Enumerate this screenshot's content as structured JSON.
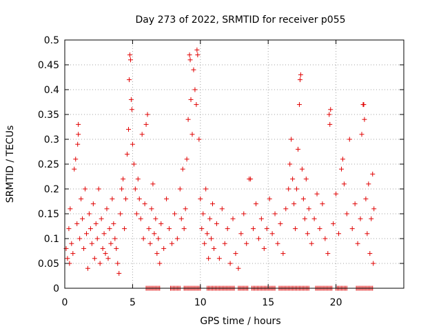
{
  "chart_data": {
    "type": "scatter",
    "title": "Day 273 of 2022, SRMTID for receiver p055",
    "xlabel": "GPS time / hours",
    "ylabel": "SRMTID / TECUs",
    "xlim": [
      0,
      25
    ],
    "ylim": [
      0,
      0.5
    ],
    "xticks": [
      "0",
      "5",
      "10",
      "15",
      "20"
    ],
    "yticks": [
      "0",
      "0.05",
      "0.1",
      "0.15",
      "0.2",
      "0.25",
      "0.3",
      "0.35",
      "0.4",
      "0.45",
      "0.5"
    ],
    "grid": true,
    "marker": "+",
    "color": "#e00000",
    "series": [
      {
        "name": "SRMTID",
        "points": [
          [
            0.1,
            0.08
          ],
          [
            0.2,
            0.06
          ],
          [
            0.3,
            0.12
          ],
          [
            0.35,
            0.05
          ],
          [
            0.4,
            0.16
          ],
          [
            0.5,
            0.09
          ],
          [
            0.6,
            0.07
          ],
          [
            0.7,
            0.24
          ],
          [
            0.8,
            0.26
          ],
          [
            0.9,
            0.13
          ],
          [
            0.95,
            0.29
          ],
          [
            1.0,
            0.31
          ],
          [
            1.0,
            0.33
          ],
          [
            1.1,
            0.1
          ],
          [
            1.2,
            0.18
          ],
          [
            1.3,
            0.14
          ],
          [
            1.4,
            0.08
          ],
          [
            1.5,
            0.2
          ],
          [
            1.6,
            0.11
          ],
          [
            1.7,
            0.04
          ],
          [
            1.8,
            0.15
          ],
          [
            1.9,
            0.12
          ],
          [
            2.0,
            0.09
          ],
          [
            2.1,
            0.17
          ],
          [
            2.2,
            0.06
          ],
          [
            2.3,
            0.13
          ],
          [
            2.4,
            0.1
          ],
          [
            2.5,
            0.2
          ],
          [
            2.6,
            0.05
          ],
          [
            2.7,
            0.14
          ],
          [
            2.8,
            0.08
          ],
          [
            2.9,
            0.11
          ],
          [
            3.0,
            0.07
          ],
          [
            3.1,
            0.16
          ],
          [
            3.2,
            0.06
          ],
          [
            3.3,
            0.12
          ],
          [
            3.4,
            0.09
          ],
          [
            3.5,
            0.18
          ],
          [
            3.6,
            0.13
          ],
          [
            3.7,
            0.1
          ],
          [
            3.8,
            0.08
          ],
          [
            3.9,
            0.05
          ],
          [
            4.0,
            0.03
          ],
          [
            4.1,
            0.15
          ],
          [
            4.2,
            0.2
          ],
          [
            4.3,
            0.22
          ],
          [
            4.4,
            0.12
          ],
          [
            4.5,
            0.18
          ],
          [
            4.6,
            0.27
          ],
          [
            4.7,
            0.32
          ],
          [
            4.75,
            0.42
          ],
          [
            4.8,
            0.47
          ],
          [
            4.85,
            0.46
          ],
          [
            4.9,
            0.38
          ],
          [
            4.95,
            0.36
          ],
          [
            5.0,
            0.29
          ],
          [
            5.1,
            0.25
          ],
          [
            5.2,
            0.2
          ],
          [
            5.3,
            0.15
          ],
          [
            5.4,
            0.22
          ],
          [
            5.5,
            0.18
          ],
          [
            5.6,
            0.14
          ],
          [
            5.7,
            0.31
          ],
          [
            5.8,
            0.1
          ],
          [
            5.9,
            0.17
          ],
          [
            6.0,
            0.33
          ],
          [
            6.1,
            0.35
          ],
          [
            6.2,
            0.12
          ],
          [
            6.3,
            0.09
          ],
          [
            6.4,
            0.16
          ],
          [
            6.5,
            0.21
          ],
          [
            6.6,
            0.11
          ],
          [
            6.7,
            0.14
          ],
          [
            6.8,
            0.07
          ],
          [
            6.9,
            0.1
          ],
          [
            7.0,
            0.05
          ],
          [
            7.1,
            0.13
          ],
          [
            7.3,
            0.08
          ],
          [
            7.5,
            0.18
          ],
          [
            7.7,
            0.12
          ],
          [
            7.9,
            0.09
          ],
          [
            8.1,
            0.15
          ],
          [
            8.3,
            0.1
          ],
          [
            8.5,
            0.2
          ],
          [
            8.6,
            0.14
          ],
          [
            8.7,
            0.24
          ],
          [
            8.8,
            0.12
          ],
          [
            8.9,
            0.16
          ],
          [
            9.0,
            0.26
          ],
          [
            9.1,
            0.34
          ],
          [
            9.2,
            0.47
          ],
          [
            9.25,
            0.46
          ],
          [
            9.3,
            0.38
          ],
          [
            9.4,
            0.31
          ],
          [
            9.5,
            0.44
          ],
          [
            9.6,
            0.4
          ],
          [
            9.7,
            0.37
          ],
          [
            9.75,
            0.48
          ],
          [
            9.8,
            0.47
          ],
          [
            9.9,
            0.3
          ],
          [
            10.0,
            0.18
          ],
          [
            10.1,
            0.12
          ],
          [
            10.2,
            0.15
          ],
          [
            10.3,
            0.09
          ],
          [
            10.4,
            0.2
          ],
          [
            10.5,
            0.11
          ],
          [
            10.6,
            0.06
          ],
          [
            10.7,
            0.14
          ],
          [
            10.8,
            0.1
          ],
          [
            10.9,
            0.17
          ],
          [
            11.0,
            0.08
          ],
          [
            11.2,
            0.13
          ],
          [
            11.4,
            0.06
          ],
          [
            11.6,
            0.16
          ],
          [
            11.8,
            0.09
          ],
          [
            12.0,
            0.12
          ],
          [
            12.2,
            0.05
          ],
          [
            12.4,
            0.14
          ],
          [
            12.6,
            0.07
          ],
          [
            12.8,
            0.04
          ],
          [
            13.0,
            0.11
          ],
          [
            13.2,
            0.15
          ],
          [
            13.4,
            0.09
          ],
          [
            13.6,
            0.22
          ],
          [
            13.7,
            0.22
          ],
          [
            13.9,
            0.12
          ],
          [
            14.1,
            0.17
          ],
          [
            14.3,
            0.1
          ],
          [
            14.5,
            0.14
          ],
          [
            14.7,
            0.08
          ],
          [
            14.9,
            0.12
          ],
          [
            15.1,
            0.18
          ],
          [
            15.3,
            0.11
          ],
          [
            15.5,
            0.15
          ],
          [
            15.7,
            0.09
          ],
          [
            15.9,
            0.13
          ],
          [
            16.1,
            0.07
          ],
          [
            16.3,
            0.16
          ],
          [
            16.5,
            0.2
          ],
          [
            16.6,
            0.25
          ],
          [
            16.7,
            0.3
          ],
          [
            16.8,
            0.22
          ],
          [
            16.9,
            0.17
          ],
          [
            17.0,
            0.12
          ],
          [
            17.1,
            0.2
          ],
          [
            17.2,
            0.28
          ],
          [
            17.3,
            0.37
          ],
          [
            17.35,
            0.42
          ],
          [
            17.4,
            0.43
          ],
          [
            17.5,
            0.24
          ],
          [
            17.6,
            0.18
          ],
          [
            17.7,
            0.14
          ],
          [
            17.8,
            0.22
          ],
          [
            17.9,
            0.11
          ],
          [
            18.0,
            0.16
          ],
          [
            18.2,
            0.09
          ],
          [
            18.4,
            0.14
          ],
          [
            18.6,
            0.19
          ],
          [
            18.8,
            0.12
          ],
          [
            19.0,
            0.17
          ],
          [
            19.2,
            0.1
          ],
          [
            19.4,
            0.07
          ],
          [
            19.5,
            0.35
          ],
          [
            19.55,
            0.33
          ],
          [
            19.6,
            0.36
          ],
          [
            19.8,
            0.13
          ],
          [
            20.0,
            0.19
          ],
          [
            20.2,
            0.11
          ],
          [
            20.4,
            0.24
          ],
          [
            20.5,
            0.26
          ],
          [
            20.6,
            0.21
          ],
          [
            20.8,
            0.15
          ],
          [
            21.0,
            0.3
          ],
          [
            21.2,
            0.12
          ],
          [
            21.4,
            0.17
          ],
          [
            21.6,
            0.09
          ],
          [
            21.8,
            0.14
          ],
          [
            21.9,
            0.31
          ],
          [
            22.0,
            0.37
          ],
          [
            22.05,
            0.37
          ],
          [
            22.1,
            0.34
          ],
          [
            22.2,
            0.18
          ],
          [
            22.3,
            0.11
          ],
          [
            22.4,
            0.21
          ],
          [
            22.5,
            0.07
          ],
          [
            22.6,
            0.14
          ],
          [
            22.7,
            0.23
          ],
          [
            22.75,
            0.05
          ],
          [
            22.8,
            0.16
          ]
        ],
        "zero_runs": [
          [
            6.0,
            7.0
          ],
          [
            7.8,
            8.5
          ],
          [
            8.8,
            10.0
          ],
          [
            10.5,
            12.5
          ],
          [
            12.8,
            13.5
          ],
          [
            13.8,
            15.5
          ],
          [
            15.8,
            18.0
          ],
          [
            18.5,
            19.7
          ],
          [
            20.0,
            20.8
          ],
          [
            21.5,
            22.7
          ]
        ]
      }
    ]
  }
}
